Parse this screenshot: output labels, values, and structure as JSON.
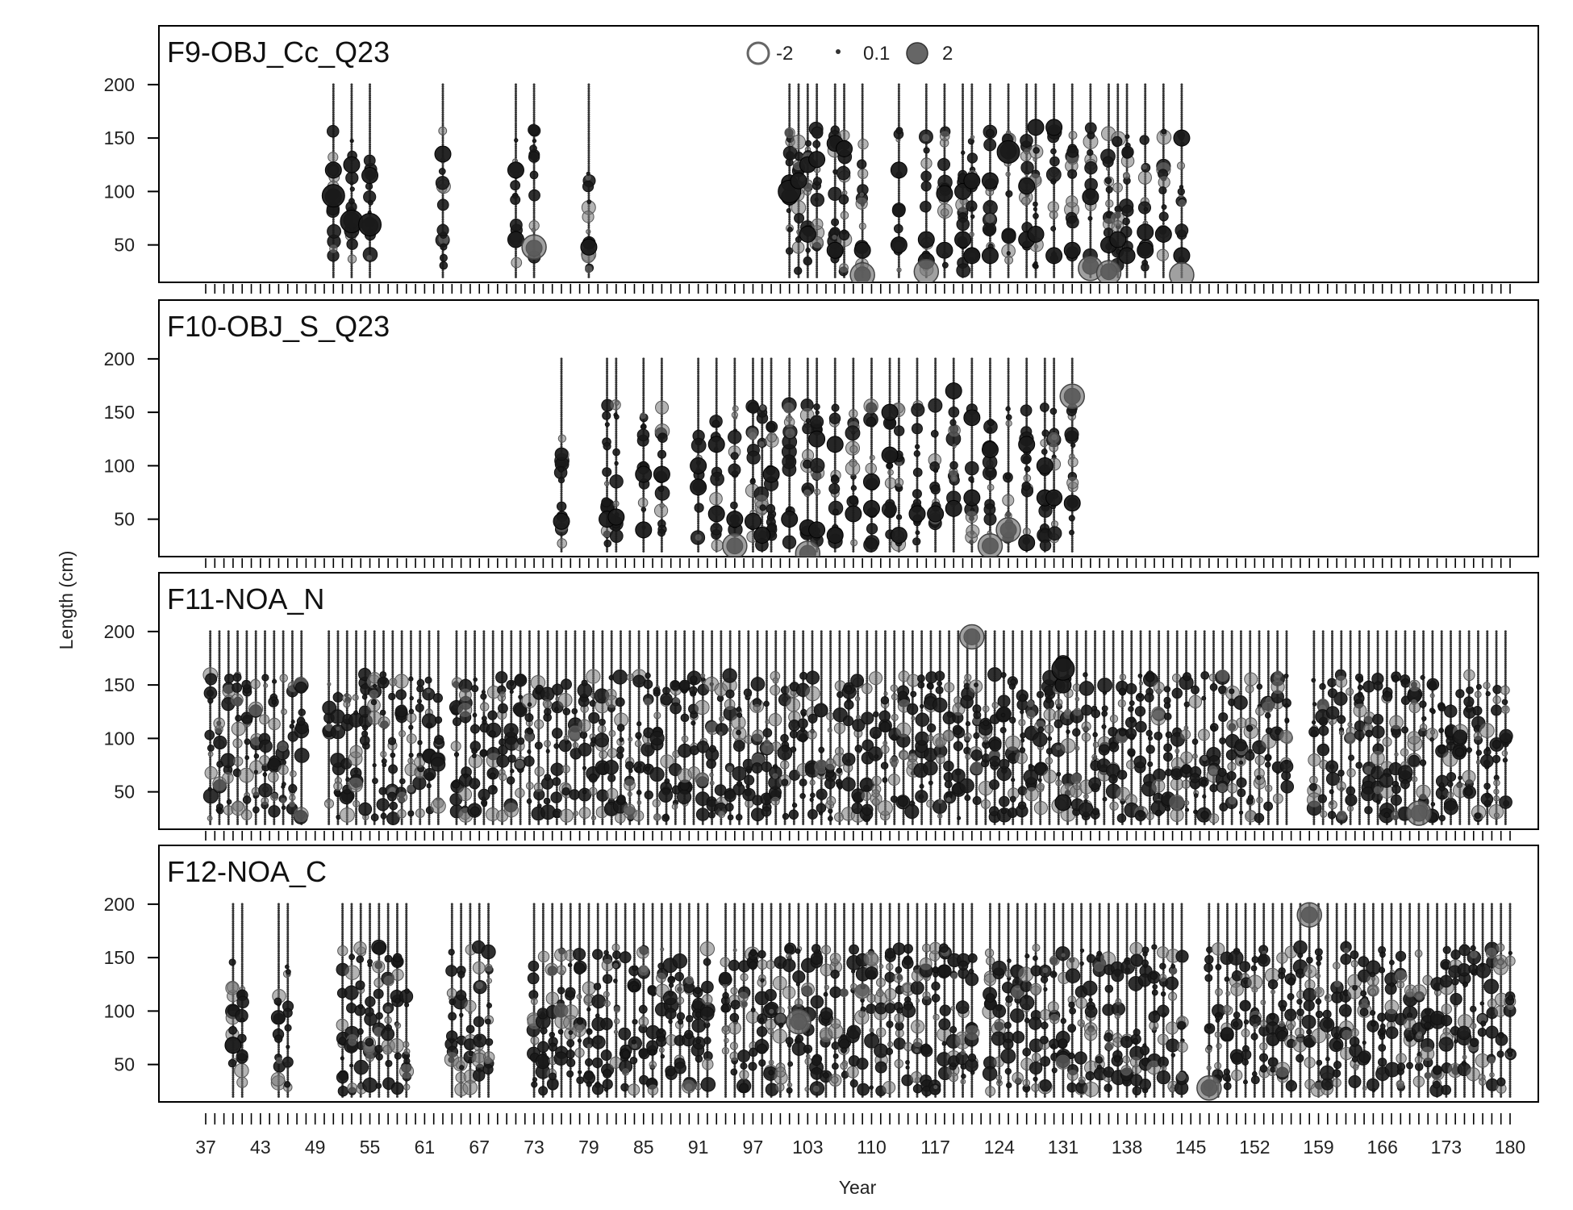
{
  "chart_data": {
    "type": "scatter",
    "subtype": "bubble",
    "xlabel": "Year",
    "ylabel": "Length (cm)",
    "x_tick_labels": [
      "37",
      "43",
      "49",
      "55",
      "61",
      "67",
      "73",
      "79",
      "85",
      "91",
      "97",
      "103",
      "110",
      "117",
      "124",
      "131",
      "138",
      "145",
      "152",
      "159",
      "166",
      "173",
      "180"
    ],
    "y_ticks": [
      50,
      100,
      150,
      200
    ],
    "y_range": [
      15,
      255
    ],
    "legend": {
      "placement": "top-center",
      "entries": [
        {
          "label": "-2",
          "style": "open"
        },
        {
          "label": "0.1",
          "style": "filled-small"
        },
        {
          "label": "2",
          "style": "filled-large"
        }
      ]
    },
    "colors": {
      "positive": "#1a1a1a",
      "negative": "#777777",
      "frame": "#000000"
    },
    "panels": [
      {
        "title": "F9-OBJ_Cc_Q23",
        "series": [
          {
            "x": 51,
            "main": [
              95,
              120
            ],
            "big": [
              96
            ]
          },
          {
            "x": 53,
            "main": [
              73,
              125
            ],
            "big": [
              72
            ]
          },
          {
            "x": 55,
            "main": [
              68,
              115
            ],
            "big": [
              69
            ]
          },
          {
            "x": 63,
            "main": [
              135
            ]
          },
          {
            "x": 71,
            "main": [
              55,
              120
            ]
          },
          {
            "x": 73,
            "main": [
              47
            ],
            "neg": [
              48
            ]
          },
          {
            "x": 79,
            "main": [
              48
            ]
          },
          {
            "x": 101,
            "main": [
              95,
              108
            ],
            "big": [
              100
            ]
          },
          {
            "x": 102,
            "main": [
              110
            ]
          },
          {
            "x": 103,
            "main": [
              60,
              125
            ]
          },
          {
            "x": 104,
            "main": [
              130
            ]
          },
          {
            "x": 106,
            "main": [
              145,
              45
            ]
          },
          {
            "x": 107,
            "main": [
              140
            ]
          },
          {
            "x": 109,
            "main": [
              45,
              22
            ],
            "neg": [
              22
            ]
          },
          {
            "x": 113,
            "main": [
              120,
              50
            ]
          },
          {
            "x": 116,
            "main": [
              55,
              35
            ],
            "neg": [
              25
            ]
          },
          {
            "x": 118,
            "main": [
              98,
              45
            ]
          },
          {
            "x": 120,
            "main": [
              100,
              55
            ]
          },
          {
            "x": 121,
            "main": [
              110,
              40
            ]
          },
          {
            "x": 123,
            "main": [
              40,
              110
            ]
          },
          {
            "x": 125,
            "main": [
              138
            ],
            "big": [
              137
            ]
          },
          {
            "x": 127,
            "main": [
              105,
              55
            ]
          },
          {
            "x": 128,
            "main": [
              60,
              160
            ]
          },
          {
            "x": 130,
            "main": [
              160,
              40
            ]
          },
          {
            "x": 132,
            "main": [
              45
            ]
          },
          {
            "x": 134,
            "main": [
              95,
              30
            ],
            "neg": [
              28
            ]
          },
          {
            "x": 136,
            "main": [
              50,
              25
            ],
            "neg": [
              24
            ]
          },
          {
            "x": 137,
            "main": [
              55
            ]
          },
          {
            "x": 138,
            "main": [
              40
            ]
          },
          {
            "x": 140,
            "main": [
              62,
              45
            ]
          },
          {
            "x": 142,
            "main": [
              60
            ]
          },
          {
            "x": 144,
            "main": [
              40,
              150
            ],
            "neg": [
              22
            ]
          }
        ]
      },
      {
        "title": "F10-OBJ_S_Q23",
        "series": [
          {
            "x": 76,
            "main": [
              48
            ]
          },
          {
            "x": 81,
            "main": [
              50
            ]
          },
          {
            "x": 82,
            "main": [
              52
            ]
          },
          {
            "x": 85,
            "main": [
              40,
              92
            ]
          },
          {
            "x": 87,
            "main": [
              92
            ]
          },
          {
            "x": 91,
            "main": [
              80,
              100
            ]
          },
          {
            "x": 93,
            "main": [
              120,
              55
            ]
          },
          {
            "x": 95,
            "main": [
              50,
              25
            ],
            "neg": [
              25
            ]
          },
          {
            "x": 97,
            "main": [
              48
            ]
          },
          {
            "x": 98,
            "main": [
              35
            ]
          },
          {
            "x": 99,
            "main": [
              92
            ]
          },
          {
            "x": 101,
            "main": [
              50
            ]
          },
          {
            "x": 103,
            "main": [
              42,
              18
            ],
            "neg": [
              18
            ]
          },
          {
            "x": 104,
            "main": [
              40,
              125
            ]
          },
          {
            "x": 106,
            "main": [
              120,
              35
            ]
          },
          {
            "x": 108,
            "main": [
              55
            ]
          },
          {
            "x": 110,
            "main": [
              85,
              60
            ]
          },
          {
            "x": 112,
            "main": [
              150,
              110
            ]
          },
          {
            "x": 113,
            "main": [
              35
            ]
          },
          {
            "x": 115,
            "main": [
              55
            ]
          },
          {
            "x": 117,
            "main": [
              55
            ]
          },
          {
            "x": 119,
            "main": [
              60,
              170
            ]
          },
          {
            "x": 121,
            "main": [
              145,
              70
            ]
          },
          {
            "x": 123,
            "main": [
              25,
              115
            ],
            "neg": [
              25
            ]
          },
          {
            "x": 125,
            "main": [
              40
            ],
            "neg": [
              40
            ]
          },
          {
            "x": 127,
            "main": [
              28,
              120
            ]
          },
          {
            "x": 129,
            "main": [
              100,
              70
            ]
          },
          {
            "x": 130,
            "main": [
              70
            ]
          },
          {
            "x": 132,
            "main": [
              65,
              165
            ],
            "neg": [
              165
            ]
          }
        ]
      },
      {
        "title": "F11-NOA_N",
        "series": [
          {
            "x": 131,
            "main": [
              170,
              150,
              40
            ],
            "big": [
              165
            ]
          },
          {
            "x": 121,
            "main": [
              195
            ],
            "neg": [
              195
            ]
          },
          {
            "x": 170,
            "main": [
              30
            ],
            "neg": [
              30
            ]
          }
        ]
      },
      {
        "title": "F12-NOA_C",
        "series": [
          {
            "x": 40,
            "main": [
              68
            ]
          },
          {
            "x": 147,
            "main": [
              28
            ],
            "neg": [
              28
            ]
          },
          {
            "x": 158,
            "main": [
              190
            ],
            "neg": [
              190
            ]
          },
          {
            "x": 102,
            "main": [
              90
            ],
            "neg": [
              90
            ]
          }
        ]
      }
    ]
  }
}
